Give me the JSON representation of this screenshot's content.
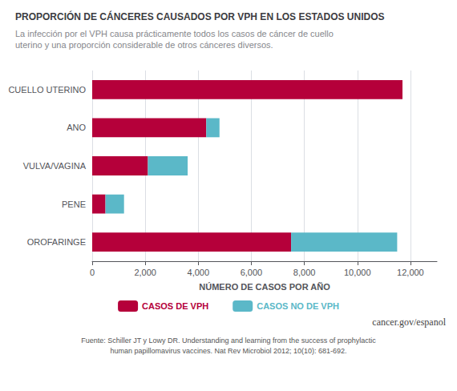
{
  "chart_data": {
    "type": "bar",
    "orientation": "horizontal",
    "stacked": true,
    "title": "PROPORCIÓN DE CÁNCERES CAUSADOS POR VPH EN LOS ESTADOS UNIDOS",
    "subtitle": "La infección por el VPH causa prácticamente todos los casos de cáncer de cuello\nuterino y una proporción considerable de otros cánceres diversos.",
    "categories": [
      "CUELLO UTERINO",
      "ANO",
      "VULVA/VAGINA",
      "PENE",
      "OROFARINGE"
    ],
    "series": [
      {
        "name": "CASOS DE VPH",
        "color": "#B5003A",
        "values": [
          11700,
          4300,
          2100,
          500,
          7500
        ]
      },
      {
        "name": "CASOS NO DE VPH",
        "color": "#5BB8C8",
        "values": [
          0,
          500,
          1500,
          700,
          4000
        ]
      }
    ],
    "xlabel": "NÚMERO DE CASOS POR AÑO",
    "xlim": [
      0,
      13000
    ],
    "xticks": [
      0,
      {
        "value": 2000,
        "label": "2,000"
      },
      {
        "value": 4000,
        "label": "4,000"
      },
      {
        "value": 6000,
        "label": "6,000"
      },
      {
        "value": 8000,
        "label": "8,000"
      },
      {
        "value": 10000,
        "label": "10,000"
      },
      {
        "value": 12000,
        "label": "12,000"
      }
    ],
    "grid": true,
    "legend": "bottom",
    "annotations": [
      "cancer.gov/espanol",
      "Fuente: Schiller JT y Lowy DR. Understanding and learning from the success of prophylactic",
      "human papillomavirus vaccines. Nat Rev Microbiol 2012; 10(10): 681-692."
    ]
  }
}
